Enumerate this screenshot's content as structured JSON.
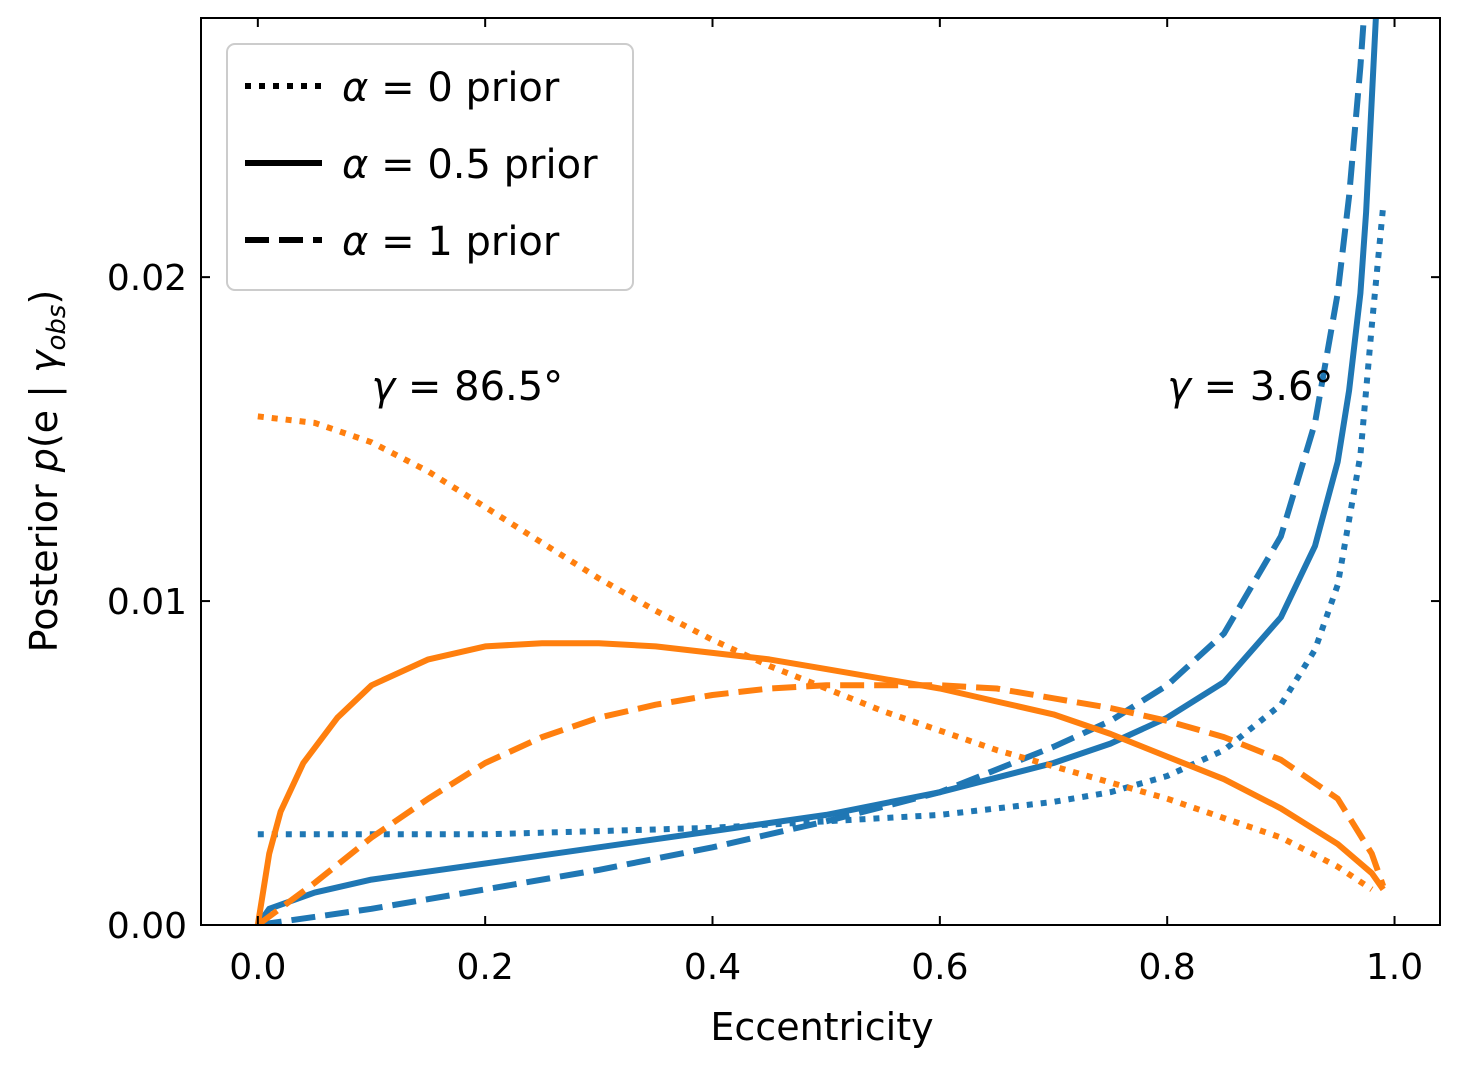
{
  "chart_data": {
    "type": "line",
    "xlabel": "Eccentricity",
    "ylabel": "Posterior p(e | γ_obs)",
    "ylabel_parts": {
      "prefix": "Posterior ",
      "func": "p",
      "open": "(e | ",
      "gamma": "γ",
      "sub": "obs",
      "close": ")"
    },
    "xlim": [
      -0.05,
      1.04
    ],
    "ylim": [
      0.0,
      0.028
    ],
    "xticks": [
      0.0,
      0.2,
      0.4,
      0.6,
      0.8,
      1.0
    ],
    "xtick_labels": [
      "0.0",
      "0.2",
      "0.4",
      "0.6",
      "0.8",
      "1.0"
    ],
    "yticks": [
      0.0,
      0.01,
      0.02
    ],
    "ytick_labels": [
      "0.00",
      "0.01",
      "0.02"
    ],
    "legend": {
      "placement": "upper-left",
      "entries": [
        {
          "symbol": "α",
          "rest": " = 0 prior",
          "style": "dotted"
        },
        {
          "symbol": "α",
          "rest": " = 0.5 prior",
          "style": "solid"
        },
        {
          "symbol": "α",
          "rest": " = 1 prior",
          "style": "dashed"
        }
      ]
    },
    "annotations": [
      {
        "symbol": "γ",
        "text": " = 86.5°",
        "x": 0.1,
        "y": 0.0162
      },
      {
        "symbol": "γ",
        "text": " = 3.6°",
        "x": 0.8,
        "y": 0.0162
      }
    ],
    "colors": {
      "blue": "#1f77b4",
      "orange": "#ff7f0e"
    },
    "series": [
      {
        "name": "γ=3.6° α=0",
        "color": "#1f77b4",
        "style": "dotted",
        "x": [
          0,
          0.1,
          0.2,
          0.3,
          0.4,
          0.5,
          0.6,
          0.7,
          0.75,
          0.8,
          0.85,
          0.9,
          0.93,
          0.95,
          0.97,
          0.98,
          0.99
        ],
        "y": [
          0.0028,
          0.0028,
          0.0028,
          0.0029,
          0.003,
          0.0032,
          0.0034,
          0.0038,
          0.0041,
          0.0046,
          0.0054,
          0.0068,
          0.0085,
          0.0105,
          0.0145,
          0.0185,
          0.0222
        ]
      },
      {
        "name": "γ=3.6° α=0.5",
        "color": "#1f77b4",
        "style": "solid",
        "x": [
          0,
          0.01,
          0.05,
          0.1,
          0.2,
          0.3,
          0.4,
          0.5,
          0.6,
          0.7,
          0.75,
          0.8,
          0.85,
          0.9,
          0.93,
          0.95,
          0.96,
          0.97,
          0.975,
          0.98,
          0.985
        ],
        "y": [
          0,
          0.0005,
          0.001,
          0.0014,
          0.0019,
          0.0024,
          0.0029,
          0.0034,
          0.0041,
          0.005,
          0.0056,
          0.0064,
          0.0075,
          0.0095,
          0.0117,
          0.0143,
          0.0165,
          0.0195,
          0.022,
          0.0255,
          0.029
        ]
      },
      {
        "name": "γ=3.6° α=1",
        "color": "#1f77b4",
        "style": "dashed",
        "x": [
          0,
          0.1,
          0.2,
          0.3,
          0.4,
          0.5,
          0.6,
          0.7,
          0.75,
          0.8,
          0.85,
          0.9,
          0.93,
          0.95,
          0.96,
          0.97,
          0.975
        ],
        "y": [
          0,
          0.0005,
          0.0011,
          0.0017,
          0.0024,
          0.0032,
          0.0041,
          0.0055,
          0.0063,
          0.0074,
          0.009,
          0.012,
          0.0155,
          0.0195,
          0.0225,
          0.0265,
          0.029
        ]
      },
      {
        "name": "γ=86.5° α=0",
        "color": "#ff7f0e",
        "style": "dotted",
        "x": [
          0,
          0.05,
          0.1,
          0.15,
          0.2,
          0.25,
          0.3,
          0.35,
          0.4,
          0.45,
          0.5,
          0.55,
          0.6,
          0.65,
          0.7,
          0.75,
          0.8,
          0.85,
          0.9,
          0.95,
          0.98
        ],
        "y": [
          0.0157,
          0.0155,
          0.0149,
          0.014,
          0.0129,
          0.0118,
          0.0107,
          0.0097,
          0.0088,
          0.008,
          0.0073,
          0.0066,
          0.006,
          0.0054,
          0.0049,
          0.0044,
          0.0039,
          0.0033,
          0.0027,
          0.0018,
          0.0011
        ]
      },
      {
        "name": "γ=86.5° α=0.5",
        "color": "#ff7f0e",
        "style": "solid",
        "x": [
          0,
          0.01,
          0.02,
          0.04,
          0.07,
          0.1,
          0.15,
          0.2,
          0.25,
          0.3,
          0.35,
          0.4,
          0.45,
          0.5,
          0.55,
          0.6,
          0.65,
          0.7,
          0.75,
          0.8,
          0.85,
          0.9,
          0.95,
          0.98,
          0.99
        ],
        "y": [
          0,
          0.0022,
          0.0035,
          0.005,
          0.0064,
          0.0074,
          0.0082,
          0.0086,
          0.0087,
          0.0087,
          0.0086,
          0.0084,
          0.0082,
          0.0079,
          0.0076,
          0.0073,
          0.0069,
          0.0065,
          0.0059,
          0.0052,
          0.0045,
          0.0036,
          0.0025,
          0.0016,
          0.0011
        ]
      },
      {
        "name": "γ=86.5° α=1",
        "color": "#ff7f0e",
        "style": "dashed",
        "x": [
          0,
          0.05,
          0.1,
          0.15,
          0.2,
          0.25,
          0.3,
          0.35,
          0.4,
          0.45,
          0.5,
          0.55,
          0.6,
          0.65,
          0.7,
          0.75,
          0.8,
          0.85,
          0.9,
          0.95,
          0.98,
          0.99
        ],
        "y": [
          0,
          0.0013,
          0.0027,
          0.0039,
          0.005,
          0.0058,
          0.0064,
          0.0068,
          0.0071,
          0.0073,
          0.0074,
          0.0074,
          0.0074,
          0.0073,
          0.007,
          0.0067,
          0.0063,
          0.0058,
          0.0051,
          0.0039,
          0.0022,
          0.0012
        ]
      }
    ]
  }
}
